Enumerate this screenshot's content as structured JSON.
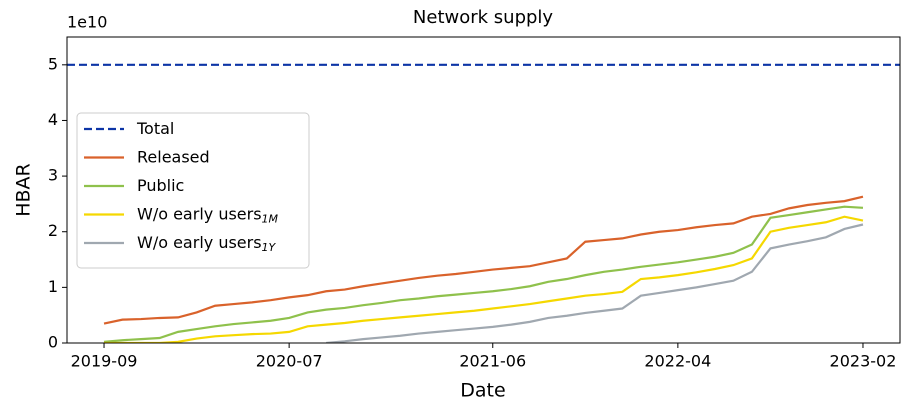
{
  "chart_data": {
    "type": "line",
    "title": "Network supply",
    "offset_text": "1e10",
    "x_label": "Date",
    "y_label": "HBAR",
    "x": [
      "2019-09",
      "2019-10",
      "2019-11",
      "2019-12",
      "2020-01",
      "2020-02",
      "2020-03",
      "2020-04",
      "2020-05",
      "2020-06",
      "2020-07",
      "2020-08",
      "2020-09",
      "2020-10",
      "2020-11",
      "2020-12",
      "2021-01",
      "2021-02",
      "2021-03",
      "2021-04",
      "2021-05",
      "2021-06",
      "2021-07",
      "2021-08",
      "2021-09",
      "2021-10",
      "2021-11",
      "2021-12",
      "2022-01",
      "2022-02",
      "2022-03",
      "2022-04",
      "2022-05",
      "2022-06",
      "2022-07",
      "2022-08",
      "2022-09",
      "2022-10",
      "2022-11",
      "2022-12",
      "2023-01",
      "2023-02"
    ],
    "reference_line": {
      "name": "Total",
      "value": 5,
      "color": "#0d35a6",
      "style": "dashed"
    },
    "series": [
      {
        "name": "Released",
        "color": "#d9622b",
        "values": [
          0.35,
          0.42,
          0.43,
          0.45,
          0.46,
          0.55,
          0.67,
          0.7,
          0.73,
          0.77,
          0.82,
          0.86,
          0.93,
          0.96,
          1.02,
          1.07,
          1.12,
          1.17,
          1.21,
          1.24,
          1.28,
          1.32,
          1.35,
          1.38,
          1.45,
          1.52,
          1.82,
          1.85,
          1.88,
          1.95,
          2.0,
          2.03,
          2.08,
          2.12,
          2.15,
          2.27,
          2.32,
          2.42,
          2.48,
          2.52,
          2.55,
          2.63
        ]
      },
      {
        "name": "Public",
        "color": "#8fc14c",
        "values": [
          0.02,
          0.05,
          0.07,
          0.09,
          0.2,
          0.25,
          0.3,
          0.34,
          0.37,
          0.4,
          0.45,
          0.55,
          0.6,
          0.63,
          0.68,
          0.72,
          0.77,
          0.8,
          0.84,
          0.87,
          0.9,
          0.93,
          0.97,
          1.02,
          1.1,
          1.15,
          1.22,
          1.28,
          1.32,
          1.37,
          1.41,
          1.45,
          1.5,
          1.55,
          1.62,
          1.77,
          2.25,
          2.3,
          2.35,
          2.4,
          2.45,
          2.43
        ]
      },
      {
        "name": "W/o early users",
        "name_sub": "1M",
        "color": "#f5d800",
        "values": [
          0,
          0,
          0,
          0,
          0.02,
          0.08,
          0.12,
          0.14,
          0.16,
          0.17,
          0.2,
          0.3,
          0.33,
          0.36,
          0.4,
          0.43,
          0.46,
          0.49,
          0.52,
          0.55,
          0.58,
          0.62,
          0.66,
          0.7,
          0.75,
          0.8,
          0.85,
          0.88,
          0.92,
          1.15,
          1.18,
          1.22,
          1.27,
          1.33,
          1.4,
          1.52,
          2.0,
          2.07,
          2.12,
          2.17,
          2.27,
          2.2
        ]
      },
      {
        "name": "W/o early users",
        "name_sub": "1Y",
        "color": "#a0a8b0",
        "values": [
          null,
          null,
          null,
          null,
          null,
          null,
          null,
          null,
          null,
          null,
          null,
          null,
          0,
          0.03,
          0.07,
          0.1,
          0.13,
          0.17,
          0.2,
          0.23,
          0.26,
          0.29,
          0.33,
          0.38,
          0.45,
          0.49,
          0.54,
          0.58,
          0.62,
          0.85,
          0.9,
          0.95,
          1.0,
          1.06,
          1.12,
          1.28,
          1.7,
          1.77,
          1.83,
          1.9,
          2.05,
          2.13
        ]
      }
    ],
    "xlim": [
      "2019-07",
      "2023-04"
    ],
    "xticks": [
      "2019-09",
      "2020-07",
      "2021-06",
      "2022-04",
      "2023-02"
    ],
    "ylim": [
      0,
      5.5
    ],
    "yticks": [
      0,
      1,
      2,
      3,
      4,
      5
    ],
    "legend": "center left"
  }
}
